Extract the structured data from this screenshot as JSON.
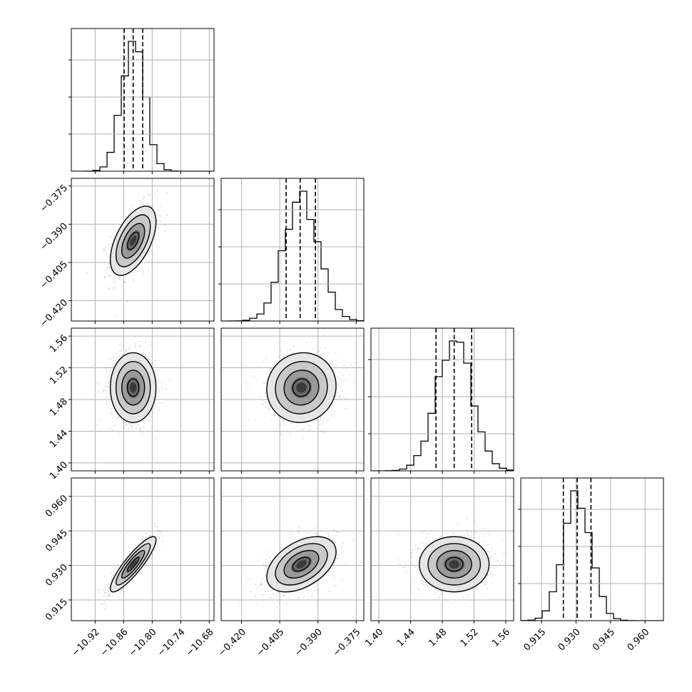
{
  "chart_data": {
    "type": "corner",
    "title": "",
    "parameters": [
      {
        "range": [
          -10.97,
          -10.67
        ],
        "mean": -10.84,
        "sd": 0.024,
        "quantiles": [
          -10.859,
          -10.84,
          -10.82
        ],
        "ticks": [
          -10.92,
          -10.86,
          -10.8,
          -10.74,
          -10.68
        ],
        "tick_labels": [
          "−10.92",
          "−10.86",
          "−10.80",
          "−10.74",
          "−10.68"
        ]
      },
      {
        "range": [
          -0.428,
          -0.372
        ],
        "mean": -0.3965,
        "sd": 0.0068,
        "quantiles": [
          -0.4025,
          -0.397,
          -0.391
        ],
        "ticks": [
          -0.42,
          -0.405,
          -0.39,
          -0.375
        ],
        "tick_labels": [
          "−0.420",
          "−0.405",
          "−0.390",
          "−0.375"
        ]
      },
      {
        "range": [
          1.39,
          1.57
        ],
        "mean": 1.495,
        "sd": 0.022,
        "quantiles": [
          1.472,
          1.495,
          1.517
        ],
        "ticks": [
          1.4,
          1.44,
          1.48,
          1.52,
          1.56
        ],
        "tick_labels": [
          "1.40",
          "1.44",
          "1.48",
          "1.52",
          "1.56"
        ]
      },
      {
        "range": [
          0.906,
          0.968
        ],
        "mean": 0.9305,
        "sd": 0.006,
        "quantiles": [
          0.9245,
          0.9305,
          0.9365
        ],
        "ticks": [
          0.915,
          0.93,
          0.945,
          0.96
        ],
        "tick_labels": [
          "0.915",
          "0.930",
          "0.945",
          "0.960"
        ]
      }
    ],
    "correlations": [
      [
        1.0,
        0.55,
        0.0,
        0.88
      ],
      [
        0.55,
        1.0,
        0.05,
        0.45
      ],
      [
        0.0,
        0.05,
        1.0,
        0.0
      ],
      [
        0.88,
        0.45,
        0.0,
        1.0
      ]
    ],
    "histogram_bins": 20,
    "contour_levels_sigma": [
      0.5,
      1.0,
      1.5,
      2.0
    ],
    "grid": true
  }
}
